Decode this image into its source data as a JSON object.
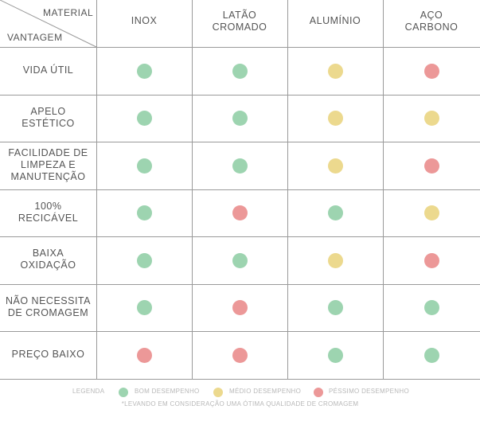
{
  "header": {
    "corner_top": "MATERIAL",
    "corner_bottom": "VANTAGEM",
    "columns": [
      "INOX",
      "LATÃO\nCROMADO",
      "ALUMÍNIO",
      "AÇO\nCARBONO"
    ]
  },
  "rows": [
    {
      "label": "VIDA ÚTIL",
      "ratings": [
        "bom",
        "bom",
        "medio",
        "pessimo"
      ]
    },
    {
      "label": "APELO\nESTÉTICO",
      "ratings": [
        "bom",
        "bom",
        "medio",
        "medio"
      ]
    },
    {
      "label": "FACILIDADE DE\nLIMPEZA E\nMANUTENÇÃO",
      "ratings": [
        "bom",
        "bom",
        "medio",
        "pessimo"
      ]
    },
    {
      "label": "100%\nRECICÁVEL",
      "ratings": [
        "bom",
        "pessimo",
        "bom",
        "medio"
      ]
    },
    {
      "label": "BAIXA\nOXIDAÇÃO",
      "ratings": [
        "bom",
        "bom",
        "medio",
        "pessimo"
      ]
    },
    {
      "label": "NÃO NECESSITA\nDE CROMAGEM",
      "ratings": [
        "bom",
        "pessimo",
        "bom",
        "bom"
      ]
    },
    {
      "label": "PREÇO BAIXO",
      "ratings": [
        "pessimo",
        "pessimo",
        "bom",
        "bom"
      ]
    }
  ],
  "legend": {
    "title": "LEGENDA",
    "bom": "BOM DESEMPENHO",
    "medio": "MÉDIO DESEMPENHO",
    "pessimo": "PÉSSIMO DESEMPENHO"
  },
  "note": "*LEVANDO EM CONSIDERAÇÃO UMA ÓTIMA QUALIDADE DE CROMAGEM",
  "colors": {
    "bom": "#9dd4b0",
    "medio": "#ecd98e",
    "pessimo": "#ec9898"
  }
}
